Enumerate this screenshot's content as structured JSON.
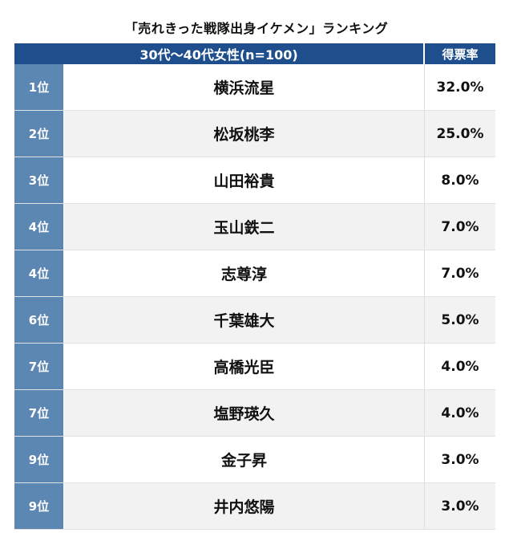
{
  "title": "「売れきった戦隊出身イケメン」ランキング",
  "header": {
    "group_label": "30代〜40代女性(n=100)",
    "rate_label": "得票率"
  },
  "colors": {
    "header_bg": "#1f4e8c",
    "rank_bg": "#5d87b3",
    "stripe_bg": "#f2f2f2"
  },
  "chart_data": {
    "type": "table",
    "title": "「売れきった戦隊出身イケメン」ランキング",
    "columns": [
      "",
      "30代〜40代女性(n=100)",
      "得票率"
    ],
    "rows": [
      {
        "rank": "1位",
        "name": "横浜流星",
        "value": "32.0%"
      },
      {
        "rank": "2位",
        "name": "松坂桃李",
        "value": "25.0%"
      },
      {
        "rank": "3位",
        "name": "山田裕貴",
        "value": "8.0%"
      },
      {
        "rank": "4位",
        "name": "玉山鉄二",
        "value": "7.0%"
      },
      {
        "rank": "4位",
        "name": "志尊淳",
        "value": "7.0%"
      },
      {
        "rank": "6位",
        "name": "千葉雄大",
        "value": "5.0%"
      },
      {
        "rank": "7位",
        "name": "高橋光臣",
        "value": "4.0%"
      },
      {
        "rank": "7位",
        "name": "塩野瑛久",
        "value": "4.0%"
      },
      {
        "rank": "9位",
        "name": "金子昇",
        "value": "3.0%"
      },
      {
        "rank": "9位",
        "name": "井内悠陽",
        "value": "3.0%"
      }
    ]
  }
}
